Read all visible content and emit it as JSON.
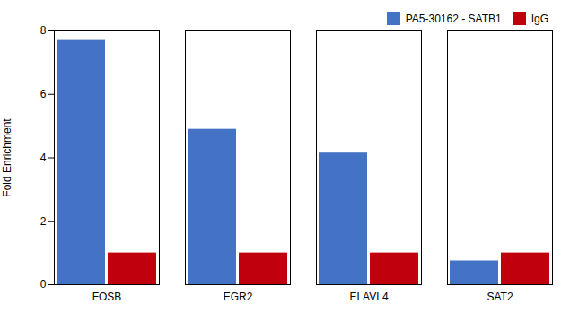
{
  "chart_data": {
    "type": "bar",
    "categories": [
      "FOSB",
      "EGR2",
      "ELAVL4",
      "SAT2"
    ],
    "series": [
      {
        "name": "PA5-30162 - SATB1",
        "color": "#4472C4",
        "values": [
          7.7,
          4.9,
          4.15,
          0.75
        ]
      },
      {
        "name": "IgG",
        "color": "#C0000C",
        "values": [
          1.0,
          1.0,
          1.0,
          1.0
        ]
      }
    ],
    "ylabel": "Fold Enrichment",
    "ylim": [
      0,
      8
    ],
    "yticks": [
      0,
      2,
      4,
      6,
      8
    ],
    "grid": false,
    "legend": "upper right"
  }
}
